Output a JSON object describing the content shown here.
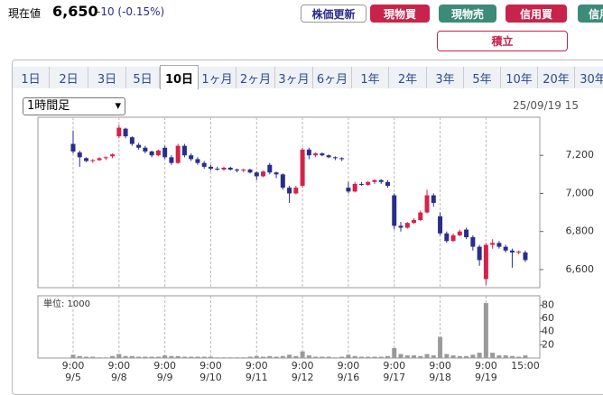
{
  "header": {
    "label": "現在値",
    "price": "6,650",
    "change": "-10 (-0.15%)"
  },
  "buttons": [
    "株価更新",
    "現物買",
    "現物売",
    "信用買",
    "信用売",
    "積立"
  ],
  "tabs": [
    "1日",
    "2日",
    "3日",
    "5日",
    "10日",
    "1ヶ月",
    "2ヶ月",
    "3ヶ月",
    "6ヶ月",
    "1年",
    "2年",
    "3年",
    "5年",
    "10年",
    "20年",
    "30年"
  ],
  "interval": "1時間足",
  "timestamp": "25/09/19 15",
  "chart_data": {
    "type": "candlestick",
    "volume_label": "単位: 1000",
    "up_color": "#d2234b",
    "down_color": "#2a2d8c",
    "volume_color": "#9a9a9a",
    "x_grid": true,
    "categories": [
      [
        "9:00",
        "9/5"
      ],
      null,
      null,
      null,
      null,
      null,
      null,
      [
        "9:00",
        "9/8"
      ],
      null,
      null,
      null,
      null,
      null,
      null,
      [
        "9:00",
        "9/9"
      ],
      null,
      null,
      null,
      null,
      null,
      null,
      [
        "9:00",
        "9/10"
      ],
      null,
      null,
      null,
      null,
      null,
      null,
      [
        "9:00",
        "9/11"
      ],
      null,
      null,
      null,
      null,
      null,
      null,
      [
        "9:00",
        "9/12"
      ],
      null,
      null,
      null,
      null,
      null,
      null,
      [
        "9:00",
        "9/16"
      ],
      null,
      null,
      null,
      null,
      null,
      null,
      [
        "9:00",
        "9/17"
      ],
      null,
      null,
      null,
      null,
      null,
      null,
      [
        "9:00",
        "9/18"
      ],
      null,
      null,
      null,
      null,
      null,
      null,
      [
        "9:00",
        "9/19"
      ],
      null,
      null,
      null,
      null,
      null,
      [
        "15:00"
      ]
    ],
    "open": [
      7260,
      7215,
      7185,
      7170,
      7175,
      7185,
      7195,
      7300,
      7340,
      7295,
      7255,
      7240,
      7220,
      7200,
      7240,
      7190,
      7160,
      7250,
      7200,
      7180,
      7160,
      7140,
      7130,
      7125,
      7135,
      7125,
      7120,
      7125,
      7110,
      7090,
      7150,
      7110,
      7100,
      7030,
      7000,
      7040,
      7230,
      7200,
      7210,
      7200,
      7190,
      7185,
      7030,
      7010,
      7050,
      7045,
      7060,
      7070,
      7060,
      6990,
      6830,
      6820,
      6845,
      6860,
      6900,
      6990,
      6880,
      6790,
      6750,
      6780,
      6810,
      6770,
      6720,
      6550,
      6730,
      6740,
      6720,
      6700,
      6690,
      6690
    ],
    "high": [
      7330,
      7225,
      7190,
      7180,
      7190,
      7195,
      7210,
      7360,
      7345,
      7300,
      7265,
      7250,
      7225,
      7230,
      7250,
      7200,
      7260,
      7260,
      7210,
      7190,
      7170,
      7150,
      7140,
      7140,
      7140,
      7130,
      7130,
      7130,
      7115,
      7120,
      7160,
      7115,
      7105,
      7040,
      7040,
      7240,
      7240,
      7215,
      7215,
      7205,
      7195,
      7190,
      7060,
      7060,
      7060,
      7065,
      7075,
      7075,
      7070,
      7000,
      6850,
      6850,
      6870,
      6910,
      7020,
      7000,
      6900,
      6800,
      6790,
      6810,
      6820,
      6780,
      6730,
      6740,
      6760,
      6750,
      6730,
      6710,
      6700,
      6700
    ],
    "low": [
      7210,
      7140,
      7165,
      7160,
      7170,
      7175,
      7185,
      7290,
      7290,
      7250,
      7230,
      7210,
      7190,
      7195,
      7180,
      7150,
      7155,
      7190,
      7170,
      7150,
      7130,
      7120,
      7120,
      7120,
      7120,
      7110,
      7110,
      7105,
      7070,
      7085,
      7100,
      7080,
      7020,
      6950,
      6995,
      7030,
      7180,
      7190,
      7195,
      7185,
      7175,
      7170,
      7000,
      7005,
      7040,
      7040,
      7050,
      7050,
      7030,
      6810,
      6800,
      6815,
      6840,
      6855,
      6895,
      6930,
      6780,
      6740,
      6745,
      6775,
      6760,
      6700,
      6620,
      6520,
      6710,
      6710,
      6690,
      6610,
      6680,
      6640
    ],
    "close": [
      7220,
      7190,
      7170,
      7175,
      7185,
      7190,
      7205,
      7345,
      7300,
      7260,
      7240,
      7220,
      7200,
      7225,
      7190,
      7160,
      7250,
      7200,
      7180,
      7160,
      7140,
      7130,
      7125,
      7135,
      7125,
      7120,
      7125,
      7110,
      7090,
      7115,
      7110,
      7100,
      7030,
      7000,
      7030,
      7230,
      7200,
      7210,
      7200,
      7190,
      7185,
      7180,
      7010,
      7050,
      7045,
      7060,
      7070,
      7060,
      7040,
      6830,
      6820,
      6845,
      6860,
      6900,
      6990,
      6950,
      6790,
      6750,
      6780,
      6800,
      6770,
      6720,
      6650,
      6730,
      6740,
      6720,
      6700,
      6690,
      6695,
      6650
    ],
    "volume": [
      5,
      3,
      2,
      2,
      1,
      1,
      3,
      6,
      3,
      3,
      2,
      2,
      2,
      2,
      4,
      3,
      3,
      2,
      2,
      2,
      2,
      2,
      1,
      1,
      1,
      1,
      1,
      2,
      3,
      2,
      3,
      2,
      3,
      5,
      3,
      10,
      4,
      2,
      2,
      2,
      1,
      2,
      5,
      3,
      2,
      2,
      2,
      2,
      3,
      15,
      6,
      4,
      4,
      3,
      6,
      4,
      32,
      6,
      4,
      3,
      3,
      5,
      8,
      83,
      8,
      4,
      4,
      3,
      2,
      4
    ],
    "ylim": [
      6505,
      7400
    ],
    "yticks": [
      {
        "value": 6600,
        "label": "6,600"
      },
      {
        "value": 6800,
        "label": "6,800"
      },
      {
        "value": 7000,
        "label": "7,000"
      },
      {
        "value": 7200,
        "label": "7,200"
      }
    ],
    "vlim": [
      0,
      94
    ],
    "vticks": [
      20,
      40,
      60,
      80
    ]
  }
}
